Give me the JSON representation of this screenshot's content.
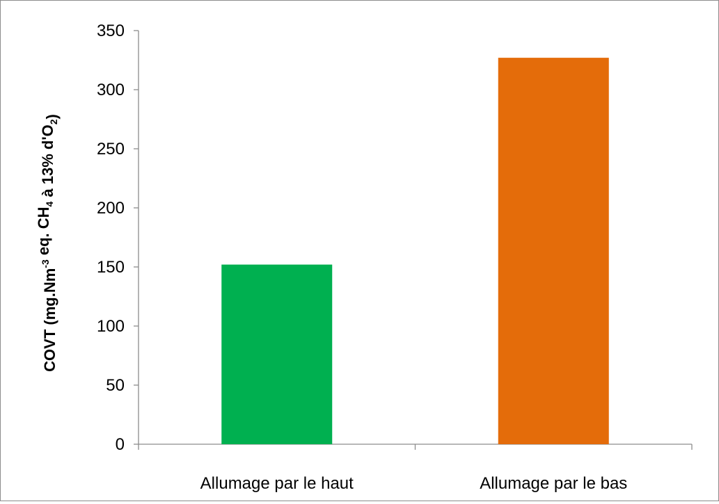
{
  "chart_data": {
    "type": "bar",
    "categories": [
      "Allumage par le haut",
      "Allumage par le bas"
    ],
    "values": [
      152,
      327
    ],
    "colors": [
      "#00b050",
      "#e46c0a"
    ],
    "title": "",
    "xlabel": "",
    "ylabel": {
      "parts": [
        {
          "text": "COVT (mg.Nm",
          "style": "normal"
        },
        {
          "text": "-3",
          "style": "sup"
        },
        {
          "text": " eq. CH",
          "style": "normal"
        },
        {
          "text": "4",
          "style": "sub"
        },
        {
          "text": " à 13% d'O",
          "style": "normal"
        },
        {
          "text": "2",
          "style": "sub"
        },
        {
          "text": ")",
          "style": "normal"
        }
      ]
    },
    "ylim": [
      0,
      350
    ],
    "yticks": [
      0,
      50,
      100,
      150,
      200,
      250,
      300,
      350
    ],
    "grid": false,
    "legend": "none"
  }
}
